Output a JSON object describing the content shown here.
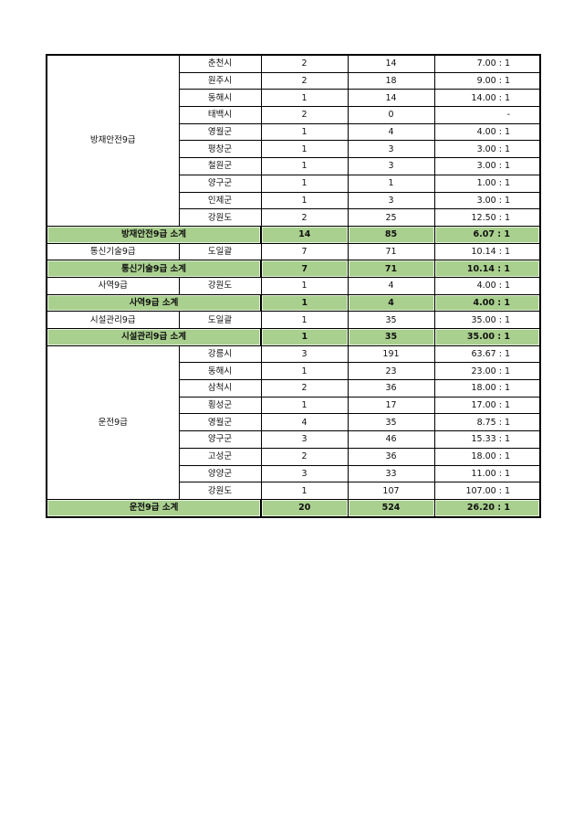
{
  "groups": [
    {
      "name": "방재안전9급",
      "rows": [
        {
          "region": "춘천시",
          "positions": "2",
          "applicants": "14",
          "ratio": "7.00 : 1"
        },
        {
          "region": "원주시",
          "positions": "2",
          "applicants": "18",
          "ratio": "9.00 : 1"
        },
        {
          "region": "동해시",
          "positions": "1",
          "applicants": "14",
          "ratio": "14.00 : 1"
        },
        {
          "region": "태백시",
          "positions": "2",
          "applicants": "0",
          "ratio": "-"
        },
        {
          "region": "영월군",
          "positions": "1",
          "applicants": "4",
          "ratio": "4.00 : 1"
        },
        {
          "region": "평창군",
          "positions": "1",
          "applicants": "3",
          "ratio": "3.00 : 1"
        },
        {
          "region": "철원군",
          "positions": "1",
          "applicants": "3",
          "ratio": "3.00 : 1"
        },
        {
          "region": "양구군",
          "positions": "1",
          "applicants": "1",
          "ratio": "1.00 : 1"
        },
        {
          "region": "인제군",
          "positions": "1",
          "applicants": "3",
          "ratio": "3.00 : 1"
        },
        {
          "region": "강원도",
          "positions": "2",
          "applicants": "25",
          "ratio": "12.50 : 1"
        }
      ],
      "subtotal": {
        "label": "방재안전9급 소계",
        "positions": "14",
        "applicants": "85",
        "ratio": "6.07 : 1"
      }
    },
    {
      "name": "통신기술9급",
      "rows": [
        {
          "region": "도일괄",
          "positions": "7",
          "applicants": "71",
          "ratio": "10.14 : 1"
        }
      ],
      "subtotal": {
        "label": "통신기술9급 소계",
        "positions": "7",
        "applicants": "71",
        "ratio": "10.14 : 1"
      }
    },
    {
      "name": "사역9급",
      "rows": [
        {
          "region": "강원도",
          "positions": "1",
          "applicants": "4",
          "ratio": "4.00 : 1"
        }
      ],
      "subtotal": {
        "label": "사역9급 소계",
        "positions": "1",
        "applicants": "4",
        "ratio": "4.00 : 1"
      }
    },
    {
      "name": "시설관리9급",
      "rows": [
        {
          "region": "도일괄",
          "positions": "1",
          "applicants": "35",
          "ratio": "35.00 : 1"
        }
      ],
      "subtotal": {
        "label": "시설관리9급 소계",
        "positions": "1",
        "applicants": "35",
        "ratio": "35.00 : 1"
      }
    },
    {
      "name": "운전9급",
      "rows": [
        {
          "region": "강릉시",
          "positions": "3",
          "applicants": "191",
          "ratio": "63.67 : 1"
        },
        {
          "region": "동해시",
          "positions": "1",
          "applicants": "23",
          "ratio": "23.00 : 1"
        },
        {
          "region": "삼척시",
          "positions": "2",
          "applicants": "36",
          "ratio": "18.00 : 1"
        },
        {
          "region": "횡성군",
          "positions": "1",
          "applicants": "17",
          "ratio": "17.00 : 1"
        },
        {
          "region": "영월군",
          "positions": "4",
          "applicants": "35",
          "ratio": "8.75 : 1"
        },
        {
          "region": "양구군",
          "positions": "3",
          "applicants": "46",
          "ratio": "15.33 : 1"
        },
        {
          "region": "고성군",
          "positions": "2",
          "applicants": "36",
          "ratio": "18.00 : 1"
        },
        {
          "region": "양양군",
          "positions": "3",
          "applicants": "33",
          "ratio": "11.00 : 1"
        },
        {
          "region": "강원도",
          "positions": "1",
          "applicants": "107",
          "ratio": "107.00 : 1"
        }
      ],
      "subtotal": {
        "label": "운전9급 소계",
        "positions": "20",
        "applicants": "524",
        "ratio": "26.20 : 1"
      }
    }
  ],
  "colors": {
    "subtotal_bg": "#a9d08e",
    "border": "#000000"
  }
}
